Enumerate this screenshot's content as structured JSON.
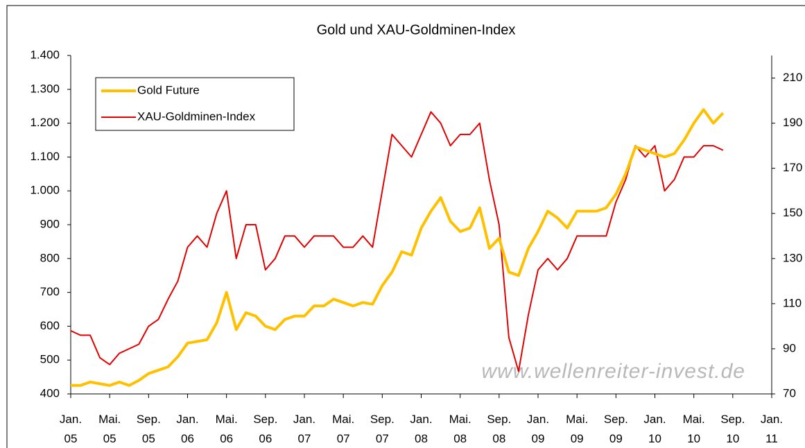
{
  "chart_data": {
    "type": "line",
    "title": "Gold und XAU-Goldminen-Index",
    "annotation": "www.wellenreiter-invest.de",
    "x": [
      "2005-01",
      "2005-02",
      "2005-03",
      "2005-04",
      "2005-05",
      "2005-06",
      "2005-07",
      "2005-08",
      "2005-09",
      "2005-10",
      "2005-11",
      "2005-12",
      "2006-01",
      "2006-02",
      "2006-03",
      "2006-04",
      "2006-05",
      "2006-06",
      "2006-07",
      "2006-08",
      "2006-09",
      "2006-10",
      "2006-11",
      "2006-12",
      "2007-01",
      "2007-02",
      "2007-03",
      "2007-04",
      "2007-05",
      "2007-06",
      "2007-07",
      "2007-08",
      "2007-09",
      "2007-10",
      "2007-11",
      "2007-12",
      "2008-01",
      "2008-02",
      "2008-03",
      "2008-04",
      "2008-05",
      "2008-06",
      "2008-07",
      "2008-08",
      "2008-09",
      "2008-10",
      "2008-11",
      "2008-12",
      "2009-01",
      "2009-02",
      "2009-03",
      "2009-04",
      "2009-05",
      "2009-06",
      "2009-07",
      "2009-08",
      "2009-09",
      "2009-10",
      "2009-11",
      "2009-12",
      "2010-01",
      "2010-02",
      "2010-03",
      "2010-04",
      "2010-05",
      "2010-06",
      "2010-07",
      "2010-08"
    ],
    "series": [
      {
        "name": "Gold Future",
        "color": "#ffc000",
        "values": [
          425,
          425,
          435,
          430,
          425,
          435,
          425,
          440,
          460,
          470,
          480,
          510,
          550,
          555,
          560,
          610,
          700,
          590,
          640,
          630,
          600,
          590,
          620,
          630,
          630,
          660,
          660,
          680,
          670,
          660,
          670,
          665,
          720,
          760,
          820,
          810,
          890,
          940,
          980,
          910,
          880,
          890,
          950,
          830,
          860,
          760,
          750,
          830,
          880,
          940,
          920,
          890,
          940,
          940,
          940,
          950,
          990,
          1050,
          1130,
          1120,
          1110,
          1100,
          1110,
          1150,
          1200,
          1240,
          1200,
          1230
        ]
      },
      {
        "name": "XAU-Goldminen-Index",
        "color": "#e00000",
        "axis": "y2",
        "values": [
          98,
          96,
          96,
          86,
          83,
          88,
          90,
          92,
          100,
          103,
          112,
          120,
          135,
          140,
          135,
          150,
          160,
          130,
          145,
          145,
          125,
          130,
          140,
          140,
          135,
          140,
          140,
          140,
          135,
          135,
          140,
          135,
          160,
          185,
          180,
          175,
          185,
          195,
          190,
          180,
          185,
          185,
          190,
          165,
          145,
          95,
          80,
          105,
          125,
          130,
          125,
          130,
          140,
          140,
          140,
          140,
          155,
          165,
          180,
          175,
          180,
          160,
          165,
          175,
          175,
          180,
          180,
          178
        ]
      }
    ],
    "xlim": [
      "2005-01",
      "2011-01"
    ],
    "xticks": [
      {
        "value": "2005-01",
        "label": "Jan. 05"
      },
      {
        "value": "2005-05",
        "label": "Mai. 05"
      },
      {
        "value": "2005-09",
        "label": "Sep. 05"
      },
      {
        "value": "2006-01",
        "label": "Jan. 06"
      },
      {
        "value": "2006-05",
        "label": "Mai. 06"
      },
      {
        "value": "2006-09",
        "label": "Sep. 06"
      },
      {
        "value": "2007-01",
        "label": "Jan. 07"
      },
      {
        "value": "2007-05",
        "label": "Mai. 07"
      },
      {
        "value": "2007-09",
        "label": "Sep. 07"
      },
      {
        "value": "2008-01",
        "label": "Jan. 08"
      },
      {
        "value": "2008-05",
        "label": "Mai. 08"
      },
      {
        "value": "2008-09",
        "label": "Sep. 08"
      },
      {
        "value": "2009-01",
        "label": "Jan. 09"
      },
      {
        "value": "2009-05",
        "label": "Mai. 09"
      },
      {
        "value": "2009-09",
        "label": "Sep. 09"
      },
      {
        "value": "2010-01",
        "label": "Jan. 10"
      },
      {
        "value": "2010-05",
        "label": "Mai. 10"
      },
      {
        "value": "2010-09",
        "label": "Sep. 10"
      },
      {
        "value": "2011-01",
        "label": "Jan. 11"
      }
    ],
    "ylim": [
      400,
      1400
    ],
    "yticks": [
      400,
      500,
      600,
      700,
      800,
      900,
      {
        "value": 1000,
        "label": "1.000"
      },
      {
        "value": 1100,
        "label": "1.100"
      },
      {
        "value": 1200,
        "label": "1.200"
      },
      {
        "value": 1300,
        "label": "1.300"
      },
      {
        "value": 1400,
        "label": "1.400"
      }
    ],
    "y2lim": [
      70,
      220
    ],
    "y2ticks": [
      70,
      90,
      110,
      130,
      150,
      170,
      190,
      210
    ],
    "grid": false,
    "legend": "upper left"
  }
}
